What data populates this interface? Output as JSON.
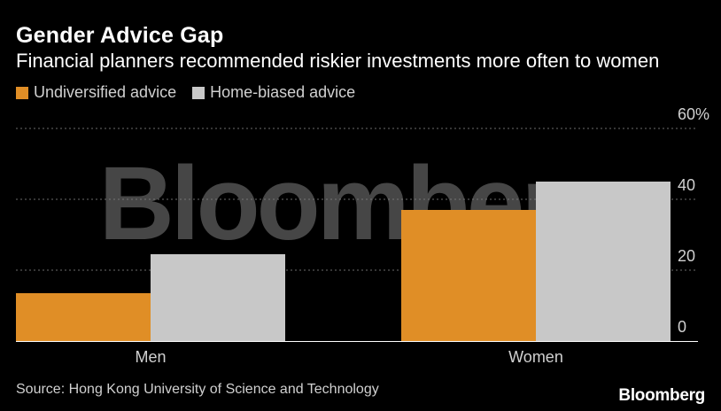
{
  "header": {
    "title": "Gender Advice Gap",
    "subtitle": "Financial planners recommended riskier investments more often to women"
  },
  "legend": [
    {
      "label": "Undiversified advice",
      "color": "#e08e26"
    },
    {
      "label": "Home-biased advice",
      "color": "#c8c8c8"
    }
  ],
  "footer": {
    "source": "Source: Hong Kong University of Science and Technology",
    "logo": "Bloomberg"
  },
  "watermark": "Bloomberg",
  "chart_data": {
    "type": "bar",
    "categories": [
      "Men",
      "Women"
    ],
    "series": [
      {
        "name": "Undiversified advice",
        "values": [
          13.5,
          37
        ],
        "color": "#e08e26"
      },
      {
        "name": "Home-biased advice",
        "values": [
          24.5,
          45
        ],
        "color": "#c8c8c8"
      }
    ],
    "y_ticks": [
      "60%",
      "40",
      "20",
      "0"
    ],
    "y_tick_values": [
      60,
      40,
      20,
      0
    ],
    "ylim": [
      0,
      60
    ],
    "grid": true,
    "legend_position": "top-left"
  }
}
